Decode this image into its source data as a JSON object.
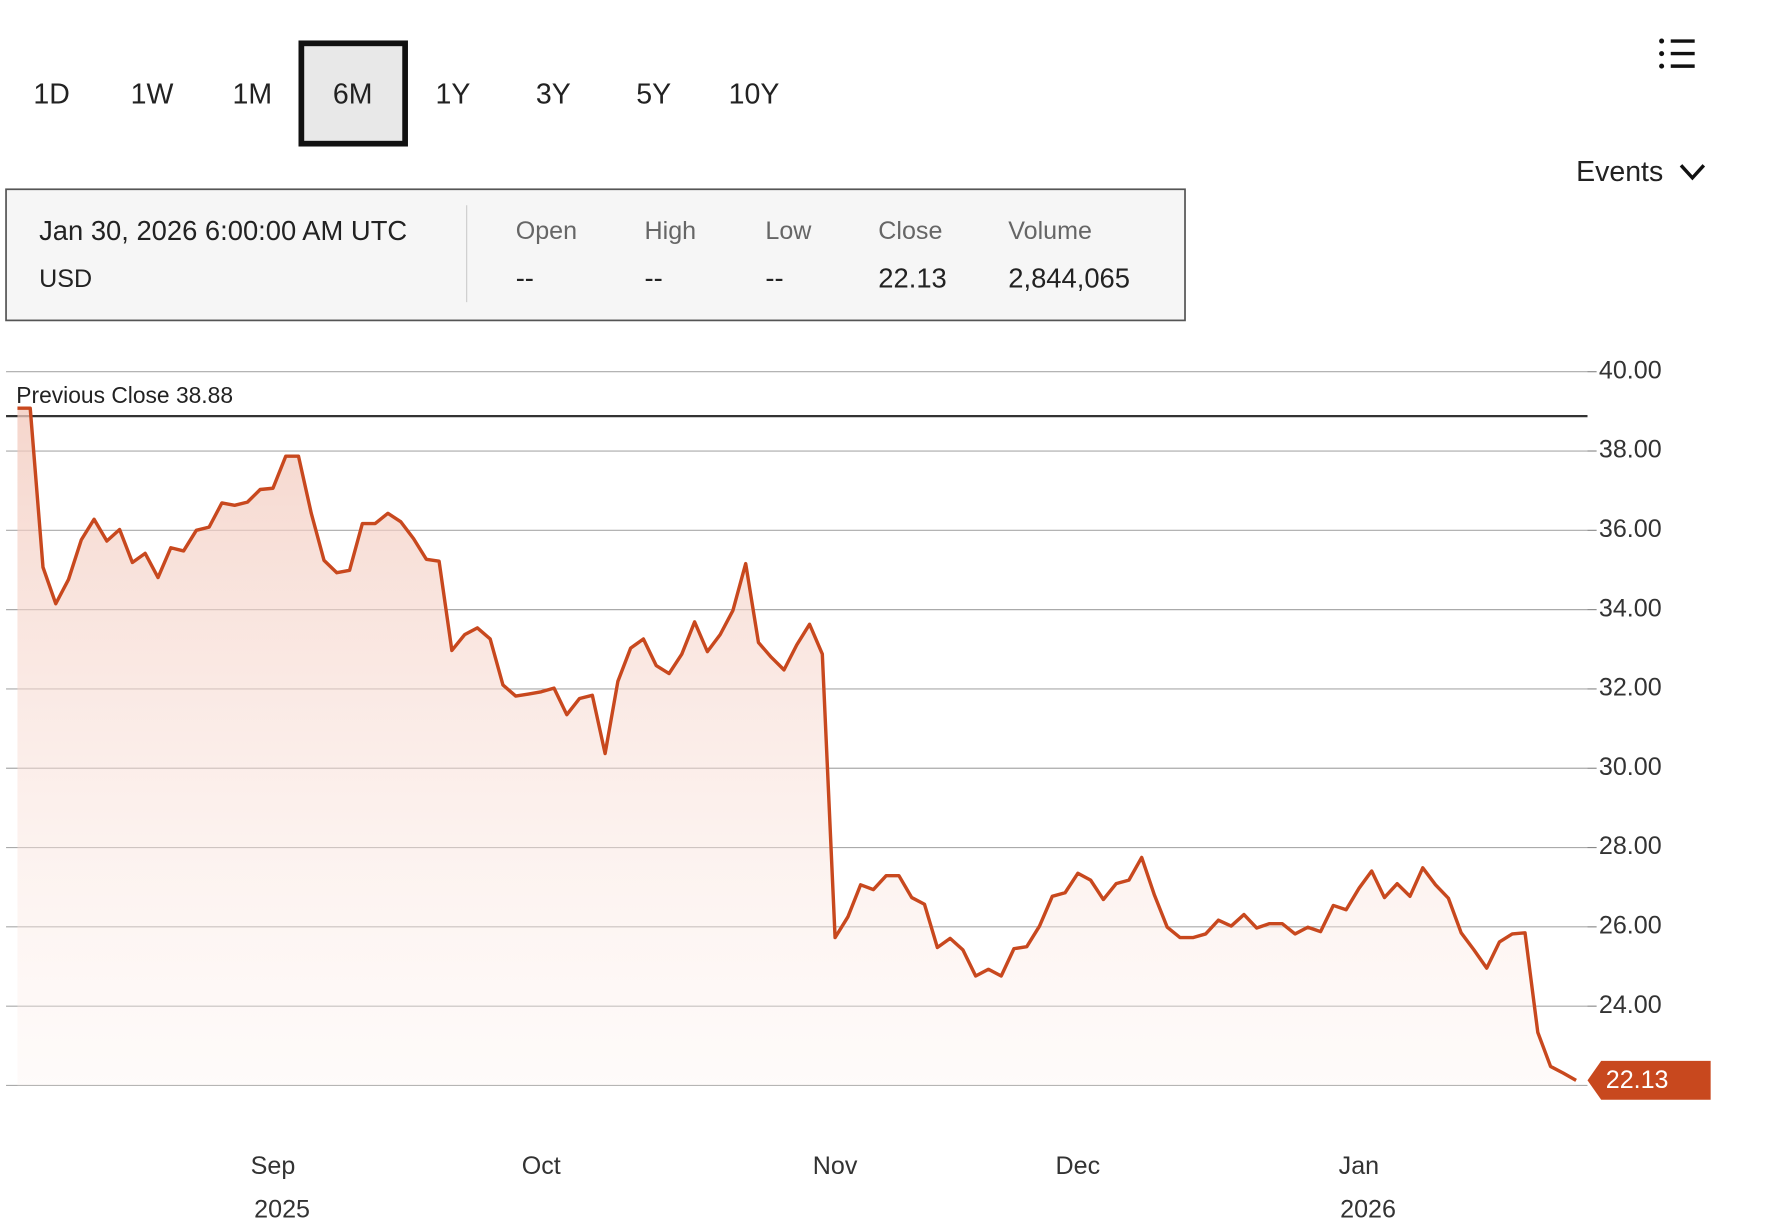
{
  "header": {
    "ranges": [
      "1D",
      "1W",
      "1M",
      "6M",
      "1Y",
      "3Y",
      "5Y",
      "10Y"
    ],
    "selected": "6M",
    "events": "Events"
  },
  "info": {
    "date": "Jan 30, 2026 6:00:00 AM UTC",
    "currency": "USD",
    "columns": [
      {
        "label": "Open",
        "value": "--"
      },
      {
        "label": "High",
        "value": "--"
      },
      {
        "label": "Low",
        "value": "--"
      },
      {
        "label": "Close",
        "value": "22.13"
      },
      {
        "label": "Volume",
        "value": "2,844,065"
      }
    ]
  },
  "chart_data": {
    "type": "line",
    "categories": [
      null,
      null,
      null,
      null,
      null,
      null,
      null,
      null,
      null,
      null,
      null,
      null,
      null,
      null,
      null,
      null,
      null,
      null,
      null,
      null,
      "Sep",
      null,
      null,
      null,
      null,
      null,
      null,
      null,
      null,
      null,
      null,
      null,
      null,
      null,
      null,
      null,
      null,
      null,
      null,
      null,
      null,
      "Oct",
      null,
      null,
      null,
      null,
      null,
      null,
      null,
      null,
      null,
      null,
      null,
      null,
      null,
      null,
      null,
      null,
      null,
      null,
      null,
      null,
      null,
      null,
      "Nov",
      null,
      null,
      null,
      null,
      null,
      null,
      null,
      null,
      null,
      null,
      null,
      null,
      null,
      null,
      null,
      null,
      null,
      null,
      "Dec",
      null,
      null,
      null,
      null,
      null,
      null,
      null,
      null,
      null,
      null,
      null,
      null,
      null,
      null,
      null,
      null,
      null,
      null,
      null,
      null,
      null,
      "Jan",
      null,
      null,
      null,
      null,
      null,
      null,
      null,
      null,
      null,
      null,
      null,
      null,
      null,
      null,
      null,
      null,
      null
    ],
    "years": [
      null,
      null,
      null,
      null,
      null,
      null,
      null,
      null,
      null,
      null,
      null,
      null,
      null,
      null,
      null,
      null,
      null,
      null,
      null,
      null,
      "2025",
      null,
      null,
      null,
      null,
      null,
      null,
      null,
      null,
      null,
      null,
      null,
      null,
      null,
      null,
      null,
      null,
      null,
      null,
      null,
      null,
      null,
      null,
      null,
      null,
      null,
      null,
      null,
      null,
      null,
      null,
      null,
      null,
      null,
      null,
      null,
      null,
      null,
      null,
      null,
      null,
      null,
      null,
      null,
      null,
      null,
      null,
      null,
      null,
      null,
      null,
      null,
      null,
      null,
      null,
      null,
      null,
      null,
      null,
      null,
      null,
      null,
      null,
      null,
      null,
      null,
      null,
      null,
      null,
      null,
      null,
      null,
      null,
      null,
      null,
      null,
      null,
      null,
      null,
      null,
      null,
      null,
      null,
      null,
      null,
      "2026",
      null,
      null,
      null,
      null,
      null,
      null,
      null,
      null,
      null,
      null,
      null,
      null,
      null,
      null,
      null,
      null,
      null
    ],
    "values": [
      39.08,
      39.08,
      35.07,
      34.15,
      34.76,
      35.76,
      36.28,
      35.73,
      36.02,
      35.19,
      35.42,
      34.81,
      35.56,
      35.48,
      36.0,
      36.08,
      36.69,
      36.63,
      36.71,
      37.03,
      37.06,
      37.87,
      37.87,
      36.43,
      35.24,
      34.93,
      34.99,
      36.17,
      36.17,
      36.43,
      36.22,
      35.79,
      35.27,
      35.22,
      32.97,
      33.37,
      33.54,
      33.26,
      32.1,
      31.82,
      31.87,
      31.93,
      32.02,
      31.35,
      31.76,
      31.84,
      30.37,
      32.19,
      33.03,
      33.26,
      32.59,
      32.39,
      32.88,
      33.69,
      32.94,
      33.37,
      33.98,
      35.16,
      33.17,
      32.8,
      32.48,
      33.11,
      33.63,
      32.88,
      25.73,
      26.25,
      27.06,
      26.94,
      27.29,
      27.29,
      26.74,
      26.57,
      25.48,
      25.71,
      25.42,
      24.76,
      24.93,
      24.76,
      25.45,
      25.5,
      26.02,
      26.77,
      26.86,
      27.35,
      27.18,
      26.69,
      27.09,
      27.18,
      27.75,
      26.8,
      25.99,
      25.73,
      25.73,
      25.82,
      26.17,
      26.02,
      26.31,
      25.97,
      26.08,
      26.08,
      25.82,
      25.99,
      25.88,
      26.54,
      26.43,
      26.97,
      27.41,
      26.74,
      27.09,
      26.77,
      27.49,
      27.06,
      26.72,
      25.85,
      25.42,
      24.96,
      25.62,
      25.82,
      25.85,
      23.34,
      22.48,
      22.31,
      22.13
    ],
    "color": "#c8481e",
    "previous_close": {
      "label": "Previous Close",
      "value": 38.88
    },
    "ylim": [
      22,
      40
    ],
    "yticks": [
      {
        "value": 24,
        "label": "24.00"
      },
      {
        "value": 26,
        "label": "26.00"
      },
      {
        "value": 28,
        "label": "28.00"
      },
      {
        "value": 30,
        "label": "30.00"
      },
      {
        "value": 32,
        "label": "32.00"
      },
      {
        "value": 34,
        "label": "34.00"
      },
      {
        "value": 36,
        "label": "36.00"
      },
      {
        "value": 38,
        "label": "38.00"
      },
      {
        "value": 40,
        "label": "40.00"
      }
    ],
    "grid": true
  }
}
